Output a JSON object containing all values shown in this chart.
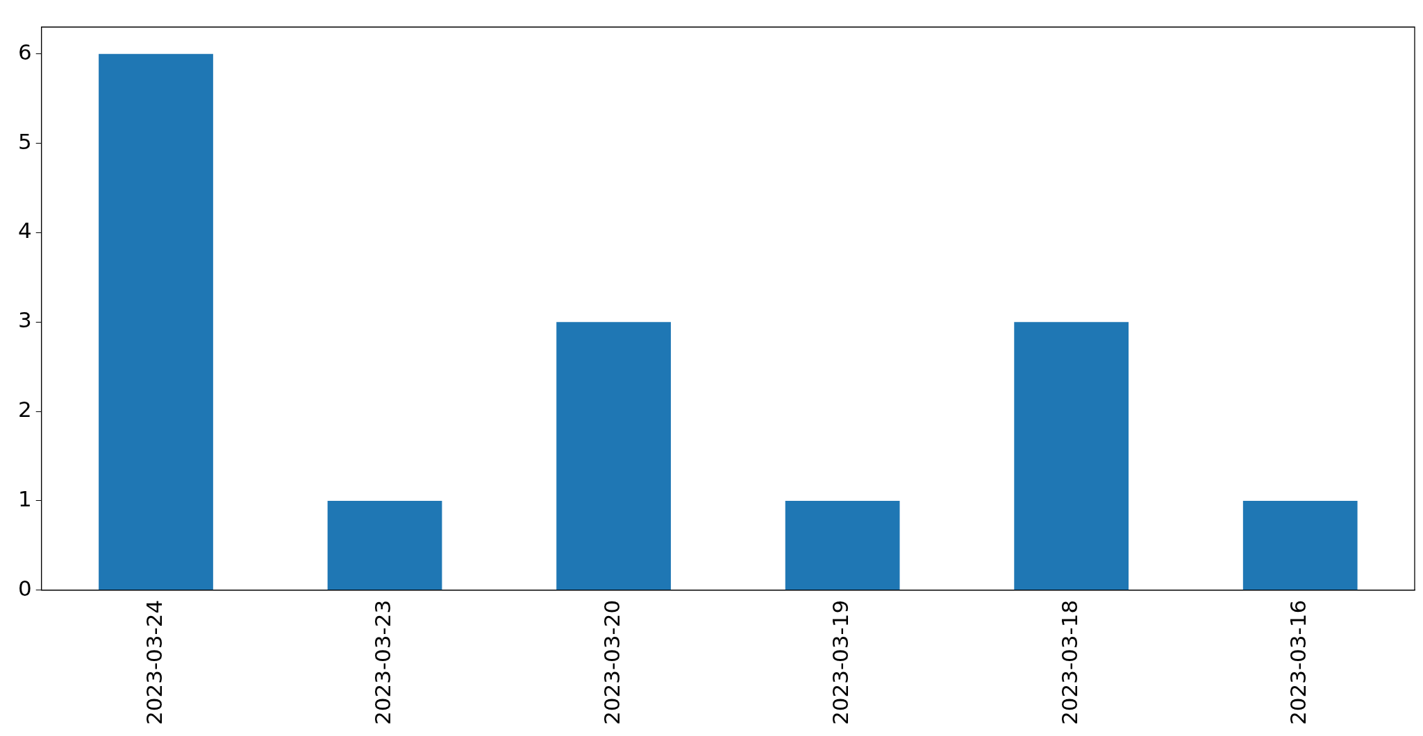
{
  "chart_data": {
    "type": "bar",
    "categories": [
      "2023-03-24",
      "2023-03-23",
      "2023-03-20",
      "2023-03-19",
      "2023-03-18",
      "2023-03-16"
    ],
    "values": [
      6,
      1,
      3,
      1,
      3,
      1
    ],
    "color": "#1f77b4",
    "ylim": [
      0,
      6.3
    ],
    "yticks": [
      0,
      1,
      2,
      3,
      4,
      5,
      6
    ],
    "grid": false,
    "legend": false
  }
}
